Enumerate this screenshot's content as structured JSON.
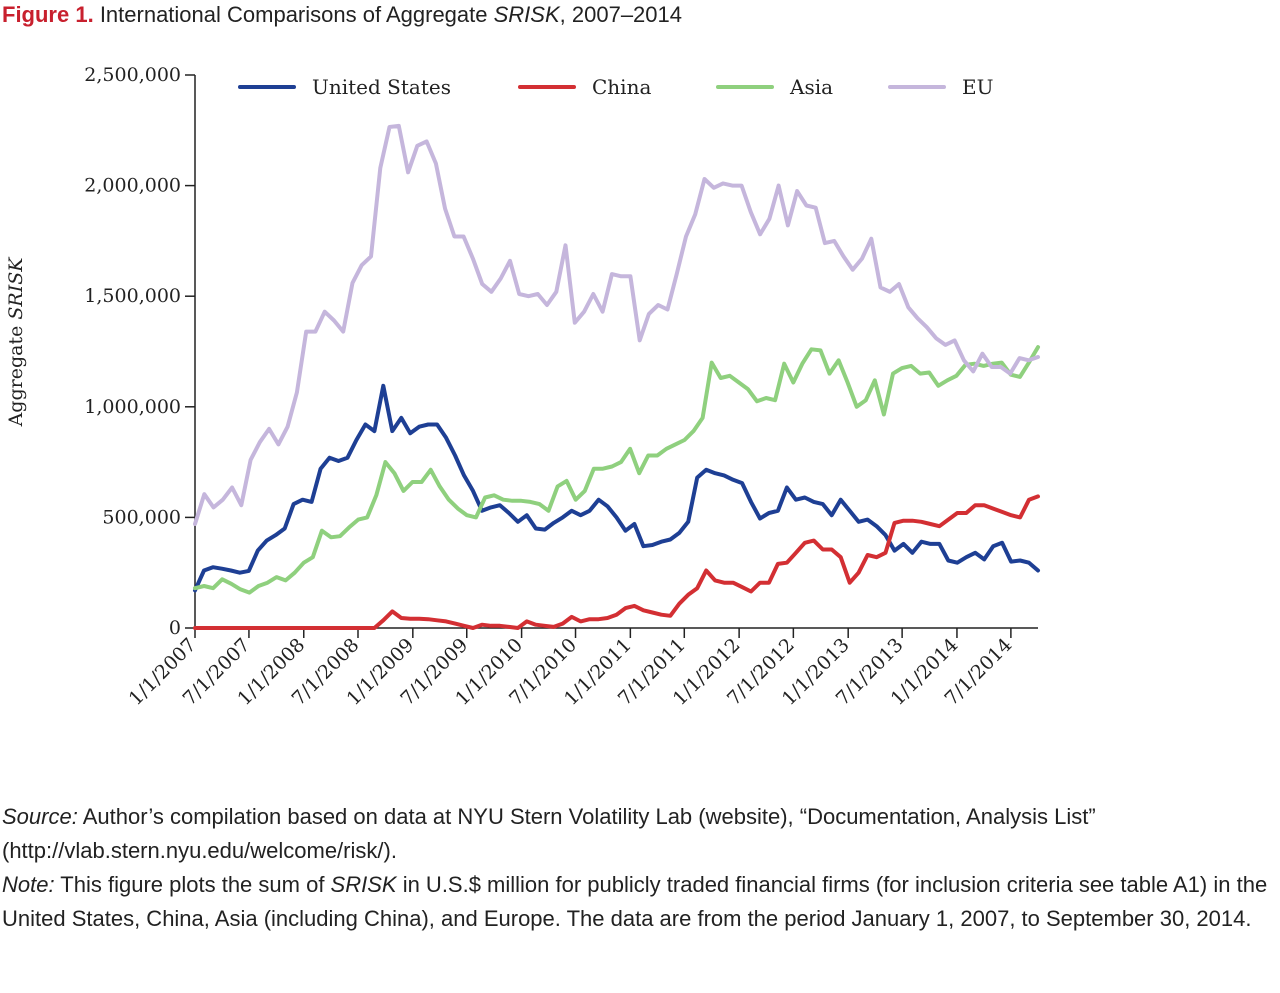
{
  "figure": {
    "number": "Figure 1.",
    "title_prefix": "International Comparisons of Aggregate ",
    "title_italic": "SRISK",
    "title_suffix": ", 2007–2014"
  },
  "chart_data": {
    "type": "line",
    "title": "International Comparisons of Aggregate SRISK, 2007–2014",
    "ylabel_prefix": "Aggregate ",
    "ylabel_italic": "SRISK",
    "xlabel": "",
    "ylim": [
      0,
      2500000
    ],
    "yticks": [
      0,
      500000,
      1000000,
      1500000,
      2000000,
      2500000
    ],
    "ytick_labels": [
      "0",
      "500,000",
      "1,000,000",
      "1,500,000",
      "2,000,000",
      "2,500,000"
    ],
    "xticks": [
      "1/1/2007",
      "7/1/2007",
      "1/1/2008",
      "7/1/2008",
      "1/1/2009",
      "7/1/2009",
      "1/1/2010",
      "7/1/2010",
      "1/1/2011",
      "7/1/2011",
      "1/1/2012",
      "7/1/2012",
      "1/1/2013",
      "7/1/2013",
      "1/1/2014",
      "7/1/2014"
    ],
    "x_start": "1/1/2007",
    "x_end": "9/30/2014",
    "grid": false,
    "legend_position": "top",
    "series": [
      {
        "name": "United States",
        "color": "#1e3f94",
        "values": [
          170000,
          260000,
          275000,
          268000,
          260000,
          250000,
          258000,
          350000,
          395000,
          420000,
          450000,
          560000,
          580000,
          570000,
          720000,
          770000,
          755000,
          770000,
          850000,
          920000,
          890000,
          1095000,
          890000,
          950000,
          880000,
          910000,
          920000,
          920000,
          860000,
          780000,
          690000,
          620000,
          530000,
          545000,
          555000,
          520000,
          480000,
          510000,
          450000,
          445000,
          475000,
          500000,
          530000,
          510000,
          530000,
          580000,
          550000,
          500000,
          440000,
          470000,
          370000,
          375000,
          390000,
          400000,
          430000,
          480000,
          680000,
          715000,
          700000,
          690000,
          670000,
          655000,
          570000,
          495000,
          520000,
          530000,
          635000,
          580000,
          590000,
          570000,
          560000,
          510000,
          580000,
          530000,
          480000,
          490000,
          460000,
          420000,
          350000,
          380000,
          340000,
          390000,
          380000,
          380000,
          305000,
          295000,
          320000,
          340000,
          310000,
          370000,
          385000,
          300000,
          305000,
          295000,
          260000
        ]
      },
      {
        "name": "China",
        "color": "#d32f33",
        "values": [
          0,
          0,
          0,
          0,
          0,
          0,
          0,
          0,
          0,
          0,
          0,
          0,
          0,
          0,
          0,
          0,
          0,
          0,
          0,
          0,
          0,
          35000,
          75000,
          45000,
          42000,
          42000,
          40000,
          35000,
          30000,
          20000,
          10000,
          0,
          15000,
          10000,
          10000,
          5000,
          0,
          30000,
          15000,
          10000,
          5000,
          20000,
          50000,
          30000,
          40000,
          40000,
          45000,
          60000,
          90000,
          100000,
          80000,
          70000,
          60000,
          55000,
          110000,
          150000,
          180000,
          260000,
          215000,
          205000,
          205000,
          185000,
          165000,
          205000,
          205000,
          290000,
          295000,
          340000,
          385000,
          395000,
          355000,
          355000,
          320000,
          205000,
          250000,
          330000,
          320000,
          340000,
          475000,
          485000,
          485000,
          480000,
          470000,
          460000,
          490000,
          520000,
          520000,
          555000,
          555000,
          540000,
          525000,
          510000,
          500000,
          580000,
          595000
        ]
      },
      {
        "name": "Asia",
        "color": "#8fd07e",
        "values": [
          180000,
          190000,
          180000,
          220000,
          200000,
          175000,
          160000,
          190000,
          205000,
          230000,
          215000,
          250000,
          295000,
          320000,
          440000,
          410000,
          415000,
          455000,
          490000,
          500000,
          600000,
          750000,
          700000,
          620000,
          660000,
          660000,
          715000,
          640000,
          580000,
          540000,
          510000,
          500000,
          590000,
          600000,
          580000,
          575000,
          575000,
          570000,
          560000,
          530000,
          640000,
          665000,
          580000,
          620000,
          720000,
          720000,
          730000,
          750000,
          810000,
          700000,
          780000,
          780000,
          810000,
          830000,
          850000,
          890000,
          950000,
          1200000,
          1130000,
          1140000,
          1110000,
          1080000,
          1025000,
          1040000,
          1030000,
          1195000,
          1110000,
          1195000,
          1260000,
          1255000,
          1150000,
          1210000,
          1110000,
          1000000,
          1030000,
          1120000,
          965000,
          1150000,
          1175000,
          1185000,
          1150000,
          1155000,
          1095000,
          1120000,
          1140000,
          1190000,
          1195000,
          1185000,
          1195000,
          1200000,
          1145000,
          1135000,
          1200000,
          1270000
        ]
      },
      {
        "name": "EU",
        "color": "#c5b6dc",
        "values": [
          470000,
          605000,
          545000,
          580000,
          635000,
          555000,
          760000,
          840000,
          900000,
          830000,
          910000,
          1065000,
          1340000,
          1340000,
          1430000,
          1390000,
          1340000,
          1560000,
          1640000,
          1680000,
          2080000,
          2265000,
          2270000,
          2060000,
          2180000,
          2200000,
          2100000,
          1895000,
          1770000,
          1770000,
          1670000,
          1555000,
          1520000,
          1580000,
          1660000,
          1510000,
          1500000,
          1510000,
          1460000,
          1520000,
          1730000,
          1380000,
          1430000,
          1510000,
          1430000,
          1600000,
          1590000,
          1590000,
          1300000,
          1420000,
          1460000,
          1440000,
          1600000,
          1770000,
          1870000,
          2030000,
          1990000,
          2010000,
          2000000,
          2000000,
          1880000,
          1780000,
          1850000,
          2000000,
          1820000,
          1975000,
          1910000,
          1900000,
          1740000,
          1750000,
          1680000,
          1620000,
          1670000,
          1760000,
          1540000,
          1520000,
          1555000,
          1450000,
          1400000,
          1360000,
          1310000,
          1280000,
          1300000,
          1210000,
          1160000,
          1240000,
          1180000,
          1180000,
          1150000,
          1220000,
          1210000,
          1225000
        ]
      }
    ]
  },
  "caption": {
    "source_label": "Source:",
    "source_text": " Author’s compilation based on data at NYU Stern Volatility Lab (website), “Documentation, Analysis List” (http://vlab.stern.nyu.edu/welcome/risk/).",
    "note_label": "Note:",
    "note_text_1": " This figure plots the sum of ",
    "note_italic": "SRISK",
    "note_text_2": " in U.S.$ million for publicly traded financial firms (for inclusion criteria see table A1) in the United States, China, Asia (including China), and Europe. The data are from the period January 1, 2007, to September 30, 2014."
  }
}
